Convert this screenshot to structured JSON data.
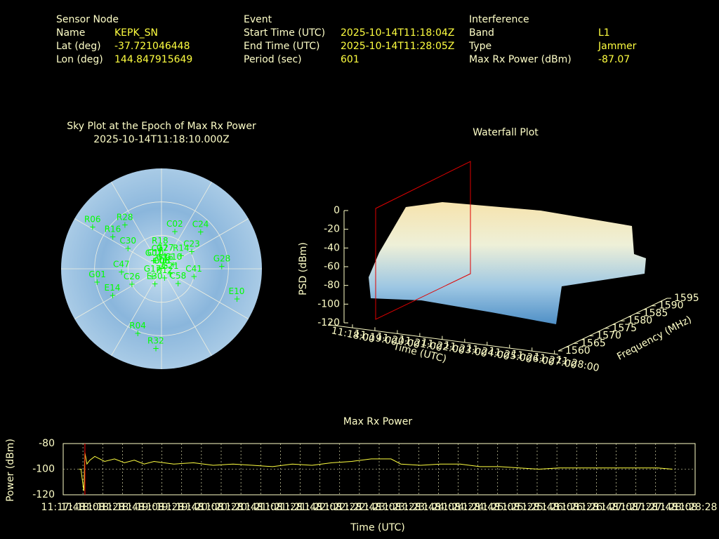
{
  "header": {
    "sensor_node": {
      "title": "Sensor Node",
      "rows": [
        [
          "Name",
          "KEPK_SN"
        ],
        [
          "Lat (deg)",
          "-37.721046448"
        ],
        [
          "Lon (deg)",
          "144.847915649"
        ]
      ]
    },
    "event": {
      "title": "Event",
      "rows": [
        [
          "Start Time (UTC)",
          "2025-10-14T11:18:04Z"
        ],
        [
          "End Time (UTC)",
          "2025-10-14T11:28:05Z"
        ],
        [
          "Period (sec)",
          "601"
        ]
      ]
    },
    "interference": {
      "title": "Interference",
      "rows": [
        [
          "Band",
          "L1"
        ],
        [
          "Type",
          "Jammer"
        ],
        [
          "Max Rx Power (dBm)",
          "-87.07"
        ]
      ]
    }
  },
  "chart_data": [
    {
      "type": "polar",
      "title": "Sky Plot at the Epoch of Max Rx Power",
      "subtitle": "2025-10-14T11:18:10.000Z",
      "color": "#00ff00",
      "rlim": [
        90,
        0
      ],
      "rings": [
        0,
        30,
        60
      ],
      "satellites": [
        {
          "name": "C06",
          "az": 341,
          "el": 0
        },
        {
          "name": "G08",
          "az": 329,
          "el": 0
        },
        {
          "name": "C27",
          "az": 352,
          "el": 11
        },
        {
          "name": "R18",
          "az": 356,
          "el": 18
        },
        {
          "name": "G27",
          "az": 15,
          "el": 12
        },
        {
          "name": "G26",
          "az": 40,
          "el": 4
        },
        {
          "name": "C10",
          "az": 324,
          "el": 9
        },
        {
          "name": "G07",
          "az": 315,
          "el": 10
        },
        {
          "name": "R14",
          "az": 57,
          "el": 21
        },
        {
          "name": "C23",
          "az": 61,
          "el": 31
        },
        {
          "name": "G10",
          "az": 71,
          "el": 11
        },
        {
          "name": "C02",
          "az": 20,
          "el": 35
        },
        {
          "name": "C24",
          "az": 47,
          "el": 48
        },
        {
          "name": "C30",
          "az": 301,
          "el": 35
        },
        {
          "name": "R28",
          "az": 320,
          "el": 51
        },
        {
          "name": "R16",
          "az": 303,
          "el": 52
        },
        {
          "name": "R06",
          "az": 301,
          "el": 72
        },
        {
          "name": "G01",
          "az": 258,
          "el": 59
        },
        {
          "name": "G28",
          "az": 88,
          "el": 54
        },
        {
          "name": "E10",
          "az": 112,
          "el": 73
        },
        {
          "name": "C41",
          "az": 104,
          "el": 30
        },
        {
          "name": "E14",
          "az": 241,
          "el": 50
        },
        {
          "name": "R04",
          "az": 200,
          "el": 62
        },
        {
          "name": "R32",
          "az": 184,
          "el": 72
        },
        {
          "name": "C58",
          "az": 132,
          "el": 20
        },
        {
          "name": "G21",
          "az": 122,
          "el": 9
        },
        {
          "name": "G17",
          "az": 229,
          "el": 11
        },
        {
          "name": "E30",
          "az": 203,
          "el": 15
        },
        {
          "name": "R12",
          "az": 162,
          "el": 9
        },
        {
          "name": "C47",
          "az": 265,
          "el": 36
        },
        {
          "name": "C26",
          "az": 242,
          "el": 30
        }
      ]
    },
    {
      "type": "surface",
      "title": "Waterfall Plot",
      "zlabel": "PSD (dBm)",
      "xlabel": "Time (UTC)",
      "ylabel": "Frequency (MHz)",
      "zlim": [
        -120,
        0
      ],
      "zticks": [
        -120,
        -100,
        -80,
        -60,
        -40,
        -20,
        0
      ],
      "ylim": [
        1560,
        1595
      ],
      "yticks": [
        1560,
        1565,
        1570,
        1575,
        1580,
        1585,
        1590,
        1595
      ],
      "xlim": [
        40680,
        41290
      ],
      "xticks": [
        {
          "value": 40680,
          "label": "11:18:00"
        },
        {
          "value": 40740,
          "label": "11:19:00"
        },
        {
          "value": 40800,
          "label": "11:20:00"
        },
        {
          "value": 40860,
          "label": "11:21:00"
        },
        {
          "value": 40920,
          "label": "11:22:00"
        },
        {
          "value": 40980,
          "label": "11:23:00"
        },
        {
          "value": 41040,
          "label": "11:24:00"
        },
        {
          "value": 41100,
          "label": "11:25:00"
        },
        {
          "value": 41160,
          "label": "11:26:00"
        },
        {
          "value": 41220,
          "label": "11:27:00"
        },
        {
          "value": 41280,
          "label": "11:28:00"
        }
      ]
    },
    {
      "type": "line",
      "title": "Max Rx Power",
      "xlabel": "Time (UTC)",
      "ylabel": "Power (dBm)",
      "color": "#ffff40",
      "grid": true,
      "xlim": [
        40668,
        41308
      ],
      "xticks": [
        {
          "value": 40668,
          "label": "11:17:48"
        },
        {
          "value": 40688,
          "label": "11:18:08"
        },
        {
          "value": 40708,
          "label": "11:18:28"
        },
        {
          "value": 40728,
          "label": "11:18:48"
        },
        {
          "value": 40748,
          "label": "11:19:08"
        },
        {
          "value": 40768,
          "label": "11:19:28"
        },
        {
          "value": 40788,
          "label": "11:19:48"
        },
        {
          "value": 40808,
          "label": "11:20:08"
        },
        {
          "value": 40828,
          "label": "11:20:28"
        },
        {
          "value": 40848,
          "label": "11:20:48"
        },
        {
          "value": 40868,
          "label": "11:21:08"
        },
        {
          "value": 40888,
          "label": "11:21:28"
        },
        {
          "value": 40908,
          "label": "11:21:48"
        },
        {
          "value": 40928,
          "label": "11:22:08"
        },
        {
          "value": 40948,
          "label": "11:22:28"
        },
        {
          "value": 40968,
          "label": "11:22:48"
        },
        {
          "value": 40988,
          "label": "11:23:08"
        },
        {
          "value": 41008,
          "label": "11:23:28"
        },
        {
          "value": 41028,
          "label": "11:23:48"
        },
        {
          "value": 41048,
          "label": "11:24:08"
        },
        {
          "value": 41068,
          "label": "11:24:28"
        },
        {
          "value": 41088,
          "label": "11:24:48"
        },
        {
          "value": 41108,
          "label": "11:25:08"
        },
        {
          "value": 41128,
          "label": "11:25:28"
        },
        {
          "value": 41148,
          "label": "11:25:48"
        },
        {
          "value": 41168,
          "label": "11:26:08"
        },
        {
          "value": 41188,
          "label": "11:26:28"
        },
        {
          "value": 41208,
          "label": "11:26:48"
        },
        {
          "value": 41228,
          "label": "11:27:08"
        },
        {
          "value": 41248,
          "label": "11:27:28"
        },
        {
          "value": 41268,
          "label": "11:27:48"
        },
        {
          "value": 41288,
          "label": "11:28:08"
        },
        {
          "value": 41308,
          "label": "11:28:28"
        }
      ],
      "ylim": [
        -120,
        -80
      ],
      "yticks": [
        -120,
        -100,
        -80
      ],
      "x": [
        40684,
        40686,
        40688,
        40689,
        40690,
        40692,
        40695,
        40700,
        40710,
        40720,
        40730,
        40740,
        40750,
        40760,
        40780,
        40800,
        40820,
        40840,
        40860,
        40880,
        40900,
        40920,
        40940,
        40960,
        40980,
        41000,
        41010,
        41030,
        41050,
        41070,
        41090,
        41110,
        41130,
        41150,
        41170,
        41190,
        41210,
        41230,
        41250,
        41270,
        41285
      ],
      "values": [
        -100,
        -100,
        -112,
        -117,
        -87,
        -96,
        -93,
        -90,
        -94,
        -92,
        -95,
        -93,
        -96,
        -94,
        -96,
        -95,
        -97,
        -96,
        -97,
        -98,
        -96,
        -97,
        -95,
        -94,
        -92,
        -92,
        -96,
        -97,
        -96,
        -96,
        -98,
        -98,
        -99,
        -100,
        -99,
        -99,
        -99,
        -99,
        -99,
        -99,
        -100
      ],
      "marker_x": 40690,
      "marker_color": "#ff0000"
    }
  ]
}
